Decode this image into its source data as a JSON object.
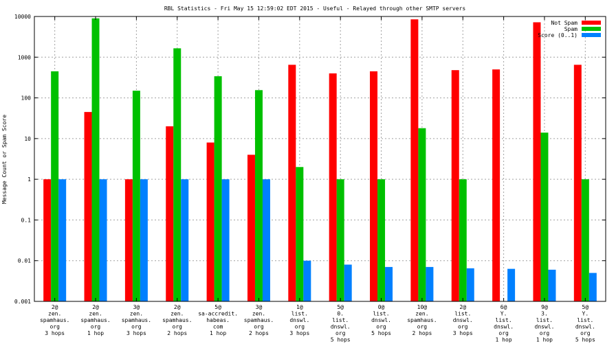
{
  "chart_data": {
    "type": "bar",
    "title": "RBL Statistics - Fri May 15 12:59:02 EDT 2015 - Useful - Relayed through other SMTP servers",
    "xlabel": "",
    "ylabel": "Message Count or Spam Score",
    "yscale": "log",
    "ylim": [
      0.001,
      10000
    ],
    "yticks": [
      "0.001",
      "0.01",
      "0.1",
      "1",
      "10",
      "100",
      "1000",
      "10000"
    ],
    "grid": true,
    "legend_position": "top-right",
    "categories": [
      [
        "2@",
        "zen.",
        "spamhaus.",
        "org",
        "3 hops"
      ],
      [
        "2@",
        "zen.",
        "spamhaus.",
        "org",
        "1 hop"
      ],
      [
        "3@",
        "zen.",
        "spamhaus.",
        "org",
        "3 hops"
      ],
      [
        "2@",
        "zen.",
        "spamhaus.",
        "org",
        "2 hops"
      ],
      [
        "5@",
        "sa-accredit.",
        "habeas.",
        "com",
        "1 hop"
      ],
      [
        "3@",
        "zen.",
        "spamhaus.",
        "org",
        "2 hops"
      ],
      [
        "1@",
        "list.",
        "dnswl.",
        "org",
        "3 hops"
      ],
      [
        "5@",
        "0.",
        "list.",
        "dnswl.",
        "org",
        "5 hops"
      ],
      [
        "0@",
        "list.",
        "dnswl.",
        "org",
        "5 hops"
      ],
      [
        "10@",
        "zen.",
        "spamhaus.",
        "org",
        "2 hops"
      ],
      [
        "2@",
        "list.",
        "dnswl.",
        "org",
        "3 hops"
      ],
      [
        "6@",
        "Y.",
        "list.",
        "dnswl.",
        "org",
        "1 hop"
      ],
      [
        "9@",
        "3.",
        "list.",
        "dnswl.",
        "org",
        "1 hop"
      ],
      [
        "5@",
        "Y.",
        "list.",
        "dnswl.",
        "org",
        "5 hops"
      ]
    ],
    "series": [
      {
        "name": "Not Spam",
        "color": "#ff0000",
        "values": [
          1,
          45,
          1,
          20,
          8,
          4,
          650,
          400,
          450,
          8500,
          480,
          500,
          7200,
          650
        ]
      },
      {
        "name": "Spam",
        "color": "#00c000",
        "values": [
          450,
          9000,
          150,
          1650,
          340,
          155,
          2,
          1,
          1,
          18,
          1,
          null,
          14,
          1
        ]
      },
      {
        "name": "Score (0..1)",
        "color": "#0080ff",
        "values": [
          1,
          1,
          1,
          1,
          1,
          1,
          0.01,
          0.008,
          0.007,
          0.007,
          0.0065,
          0.0063,
          0.006,
          0.005
        ]
      }
    ]
  }
}
